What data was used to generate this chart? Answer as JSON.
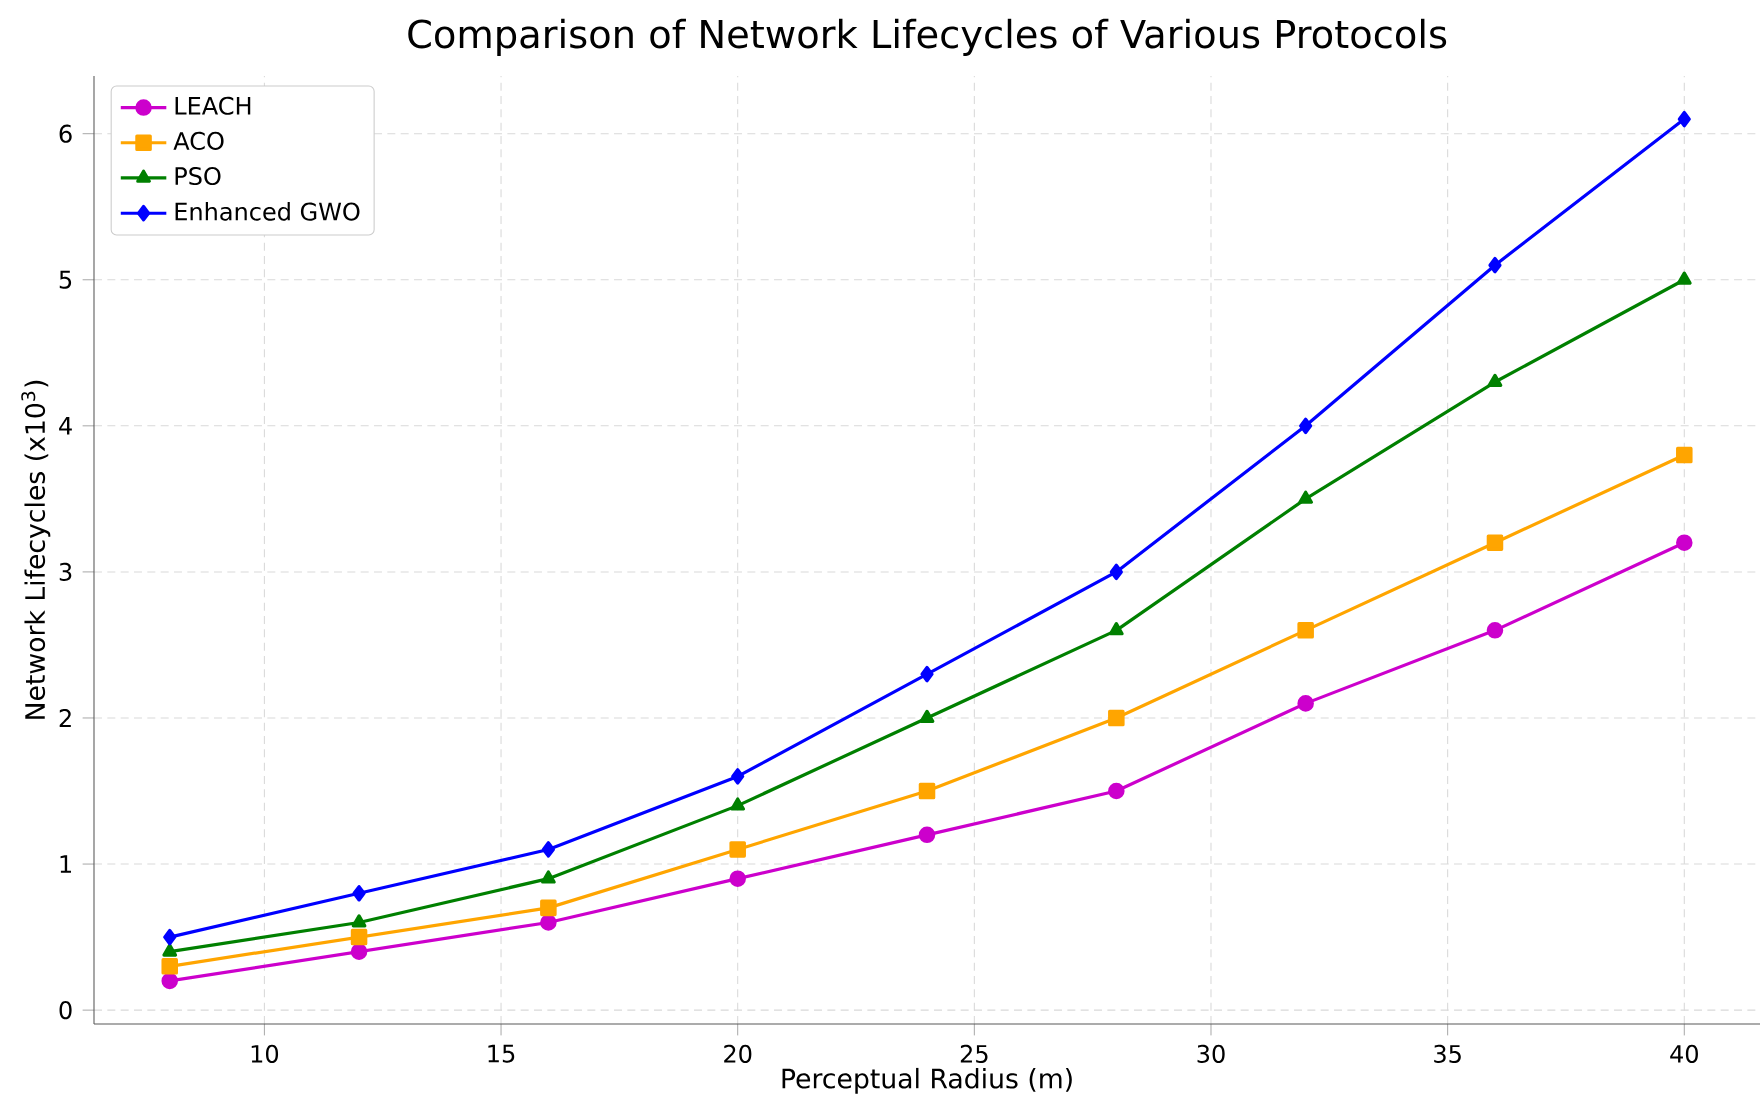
{
  "chart_data": {
    "type": "line",
    "title": "Comparison of Network Lifecycles of Various Protocols",
    "xlabel": "Perceptual Radius (m)",
    "ylabel": "Network Lifecycles (x10$^{3}$)",
    "x": [
      8,
      12,
      16,
      20,
      24,
      28,
      32,
      36,
      40
    ],
    "series": [
      {
        "name": "LEACH",
        "color": "#cc00cc",
        "marker": "circle",
        "values": [
          0.2,
          0.4,
          0.6,
          0.9,
          1.2,
          1.5,
          2.1,
          2.6,
          3.2
        ]
      },
      {
        "name": "ACO",
        "color": "#ffa500",
        "marker": "square",
        "values": [
          0.3,
          0.5,
          0.7,
          1.1,
          1.5,
          2.0,
          2.6,
          3.2,
          3.8
        ]
      },
      {
        "name": "PSO",
        "color": "#008000",
        "marker": "triangle",
        "values": [
          0.4,
          0.6,
          0.9,
          1.4,
          2.0,
          2.6,
          3.5,
          4.3,
          5.0
        ]
      },
      {
        "name": "Enhanced GWO",
        "color": "#0000ff",
        "marker": "diamond",
        "values": [
          0.5,
          0.8,
          1.1,
          1.6,
          2.3,
          3.0,
          4.0,
          5.1,
          6.1
        ]
      }
    ],
    "xlim": [
      6.4,
      41.6
    ],
    "ylim": [
      -0.095,
      6.395
    ],
    "xticks": [
      10,
      15,
      20,
      25,
      30,
      35,
      40
    ],
    "yticks": [
      0,
      1,
      2,
      3,
      4,
      5,
      6
    ],
    "grid": true,
    "legend": "top left",
    "line_style": "solid"
  }
}
